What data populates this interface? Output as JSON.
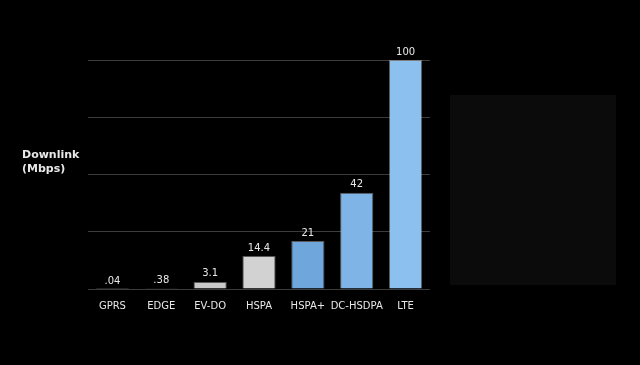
{
  "chart_data": {
    "type": "bar",
    "y_label": "Downlink (Mbps)",
    "categories": [
      "GPRS",
      "EDGE",
      "EV-DO",
      "HSPA",
      "HSPA+",
      "DC-HSDPA",
      "LTE"
    ],
    "values": [
      0.04,
      0.38,
      3.1,
      14.4,
      21,
      42,
      100
    ],
    "value_labels": [
      ".04",
      ".38",
      "3.1",
      "14.4",
      "21",
      "42",
      "100"
    ],
    "colors": [
      "#bdbdbd",
      "#c4c4c4",
      "#c9c9c9",
      "#d2d2d2",
      "#6fa6dc",
      "#7fb4e6",
      "#8cc0ee"
    ],
    "ylim": [
      0,
      100
    ],
    "yticks": [
      0,
      25,
      50,
      75,
      100
    ],
    "grid": true,
    "data_labels": true,
    "tick_labels": "x"
  }
}
